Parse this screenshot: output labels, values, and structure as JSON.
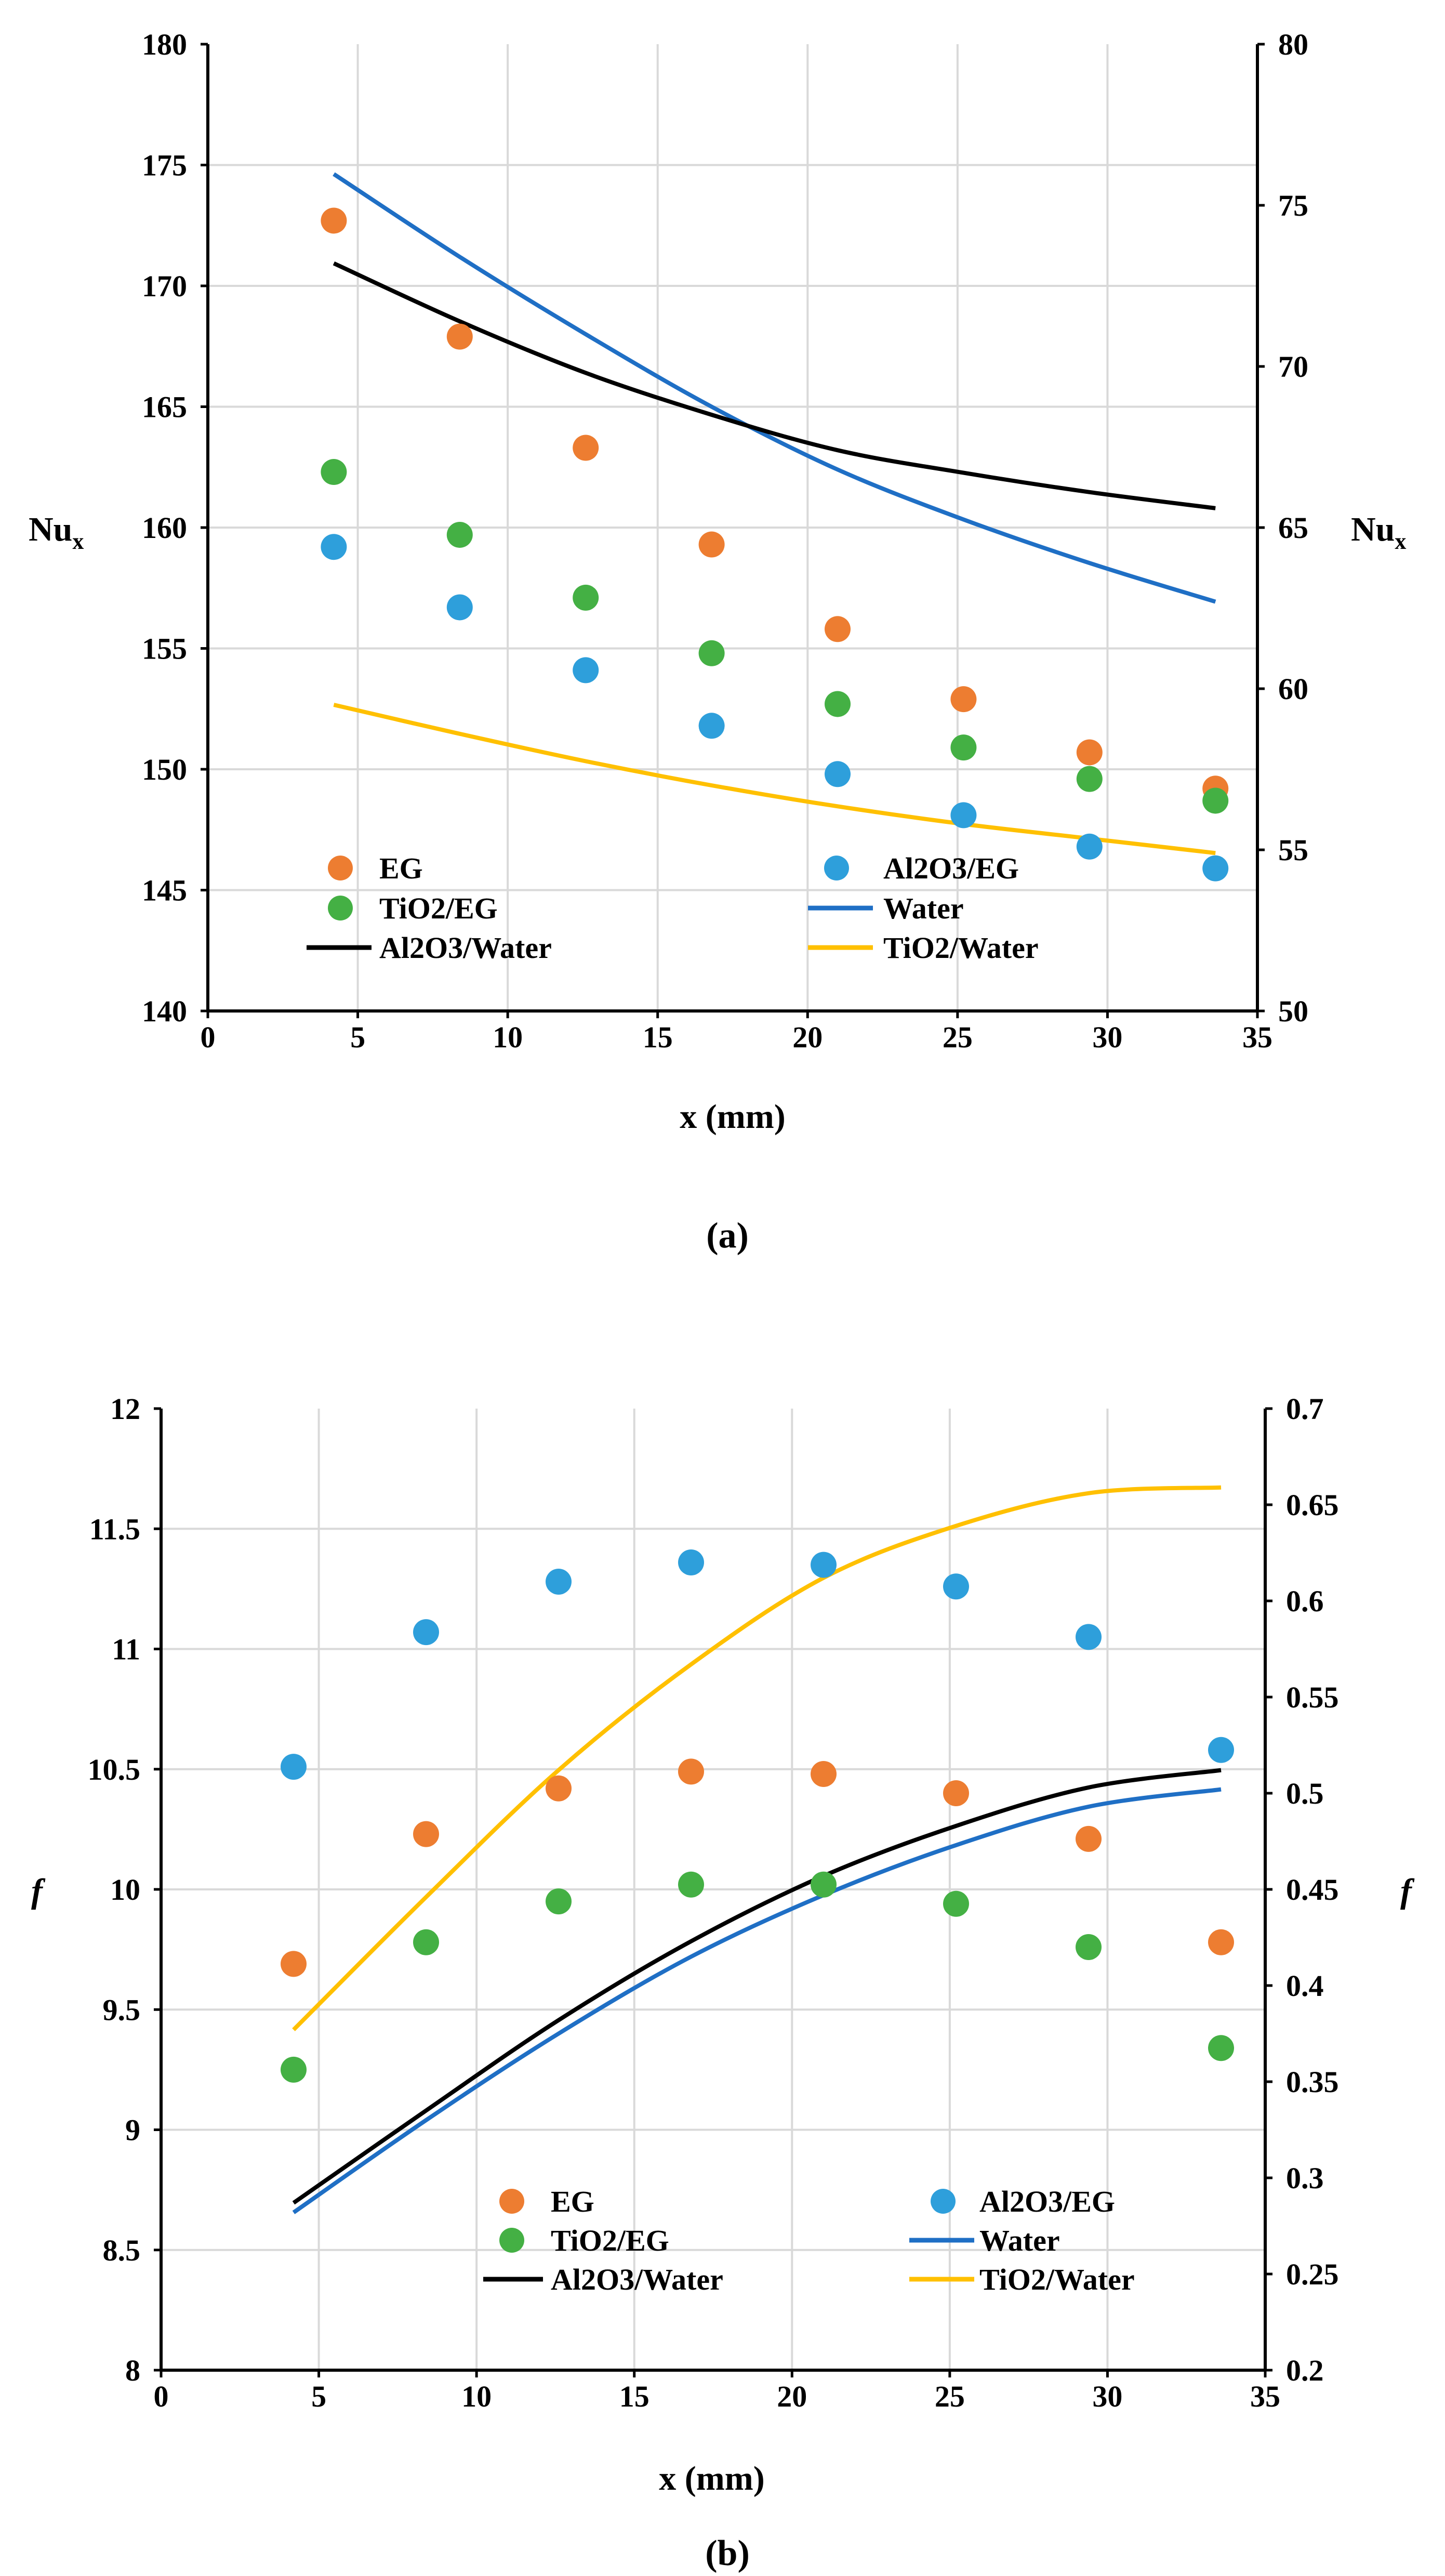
{
  "chart_data": [
    {
      "type": "scatter",
      "caption": "(a)",
      "xlabel": "x (mm)",
      "ylabel_left": "Nu",
      "ylabel_left_sub": "x",
      "ylabel_right": "Nu",
      "ylabel_right_sub": "x",
      "xlim": [
        0,
        35
      ],
      "ylim_left": [
        140,
        180
      ],
      "ylim_right": [
        50,
        80
      ],
      "xticks": [
        "0",
        "5",
        "10",
        "15",
        "20",
        "25",
        "30",
        "35"
      ],
      "yticks_left": [
        "140",
        "145",
        "150",
        "155",
        "160",
        "165",
        "170",
        "175",
        "180"
      ],
      "yticks_right": [
        "50",
        "55",
        "60",
        "65",
        "70",
        "75",
        "80"
      ],
      "grid": true,
      "x": [
        4.2,
        8.4,
        12.6,
        16.8,
        21.0,
        25.2,
        29.4,
        33.6
      ],
      "series": [
        {
          "name": "EG",
          "kind": "marker",
          "axis": "left",
          "color": "#ED7D31",
          "values": [
            172.7,
            167.9,
            163.3,
            159.3,
            155.8,
            152.9,
            150.7,
            149.2
          ]
        },
        {
          "name": "Al2O3/EG",
          "kind": "marker",
          "axis": "left",
          "color": "#2E9FDB",
          "values": [
            159.2,
            156.7,
            154.1,
            151.8,
            149.8,
            148.1,
            146.8,
            145.9
          ]
        },
        {
          "name": "TiO2/EG",
          "kind": "marker",
          "axis": "left",
          "color": "#44B044",
          "values": [
            162.3,
            159.7,
            157.1,
            154.8,
            152.7,
            150.9,
            149.6,
            148.7
          ]
        },
        {
          "name": "Water",
          "kind": "line",
          "axis": "right",
          "color": "#1F6FC5",
          "values": [
            75.97,
            73.4,
            71.0,
            68.75,
            66.8,
            65.25,
            63.9,
            62.7
          ]
        },
        {
          "name": "Al2O3/Water",
          "kind": "line",
          "axis": "right",
          "color": "#000000",
          "values": [
            73.2,
            71.4,
            69.8,
            68.5,
            67.4,
            66.7,
            66.1,
            65.6
          ]
        },
        {
          "name": "TiO2/Water",
          "kind": "line",
          "axis": "right",
          "color": "#FFC000",
          "values": [
            59.5,
            58.6,
            57.75,
            57.0,
            56.35,
            55.8,
            55.35,
            54.9
          ]
        }
      ],
      "legend_position": "bottom-inside"
    },
    {
      "type": "scatter",
      "caption": "(b)",
      "xlabel": "x (mm)",
      "ylabel_left": "f",
      "ylabel_left_sub": "",
      "ylabel_right": "f",
      "ylabel_right_sub": "",
      "xlim": [
        0,
        35
      ],
      "ylim_left": [
        8,
        12
      ],
      "ylim_right": [
        0.2,
        0.7
      ],
      "xticks": [
        "0",
        "5",
        "10",
        "15",
        "20",
        "25",
        "30",
        "35"
      ],
      "yticks_left": [
        "8",
        "8.5",
        "9",
        "9.5",
        "10",
        "10.5",
        "11",
        "11.5",
        "12"
      ],
      "yticks_right": [
        "0.2",
        "0.25",
        "0.3",
        "0.35",
        "0.4",
        "0.45",
        "0.5",
        "0.55",
        "0.6",
        "0.65",
        "0.7"
      ],
      "grid": true,
      "x": [
        4.2,
        8.4,
        12.6,
        16.8,
        21.0,
        25.2,
        29.4,
        33.6
      ],
      "series": [
        {
          "name": "EG",
          "kind": "marker",
          "axis": "left",
          "color": "#ED7D31",
          "values": [
            9.69,
            10.23,
            10.42,
            10.49,
            10.48,
            10.4,
            10.21,
            9.78
          ]
        },
        {
          "name": "Al2O3/EG",
          "kind": "marker",
          "axis": "left",
          "color": "#2E9FDB",
          "values": [
            10.51,
            11.07,
            11.28,
            11.36,
            11.35,
            11.26,
            11.05,
            10.58
          ]
        },
        {
          "name": "TiO2/EG",
          "kind": "marker",
          "axis": "left",
          "color": "#44B044",
          "values": [
            9.25,
            9.78,
            9.95,
            10.02,
            10.02,
            9.94,
            9.76,
            9.34
          ]
        },
        {
          "name": "Water",
          "kind": "line",
          "axis": "right",
          "color": "#1F6FC5",
          "values": [
            0.282,
            0.33,
            0.375,
            0.415,
            0.447,
            0.473,
            0.493,
            0.502
          ]
        },
        {
          "name": "Al2O3/Water",
          "kind": "line",
          "axis": "right",
          "color": "#000000",
          "values": [
            0.287,
            0.335,
            0.382,
            0.423,
            0.457,
            0.483,
            0.503,
            0.512
          ]
        },
        {
          "name": "TiO2/Water",
          "kind": "line",
          "axis": "right",
          "color": "#FFC000",
          "values": [
            0.377,
            0.446,
            0.512,
            0.567,
            0.612,
            0.639,
            0.656,
            0.659
          ]
        }
      ],
      "legend_position": "bottom-inside"
    }
  ]
}
